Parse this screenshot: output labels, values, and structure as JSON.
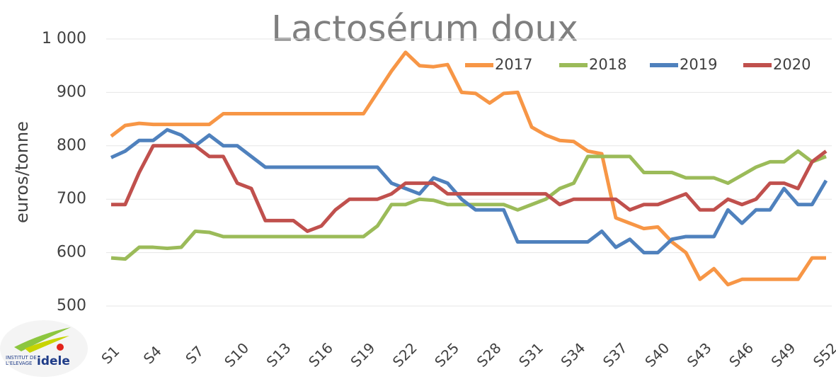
{
  "chart_data": {
    "type": "line",
    "title": "Lactosérum doux",
    "y_label": "euros/tonne",
    "categories": [
      "S1",
      null,
      null,
      "S4",
      null,
      null,
      "S7",
      null,
      null,
      "S10",
      null,
      null,
      "S13",
      null,
      null,
      "S16",
      null,
      null,
      "S19",
      null,
      null,
      "S22",
      null,
      null,
      "S25",
      null,
      null,
      "S28",
      null,
      null,
      "S31",
      null,
      null,
      "S34",
      null,
      null,
      "S37",
      null,
      null,
      "S40",
      null,
      null,
      "S43",
      null,
      null,
      "S46",
      null,
      null,
      "S49",
      null,
      null,
      "S52"
    ],
    "series": [
      {
        "name": "2017",
        "color": "#f79646",
        "values": [
          818,
          838,
          842,
          840,
          840,
          840,
          840,
          840,
          860,
          860,
          860,
          860,
          860,
          860,
          860,
          860,
          860,
          860,
          860,
          900,
          940,
          975,
          950,
          948,
          952,
          900,
          898,
          880,
          898,
          900,
          835,
          820,
          810,
          808,
          790,
          785,
          665,
          655,
          645,
          648,
          620,
          600,
          550,
          570,
          540,
          550,
          550,
          550,
          550,
          550,
          590,
          590
        ]
      },
      {
        "name": "2018",
        "color": "#9bbb59",
        "values": [
          590,
          588,
          610,
          610,
          608,
          610,
          640,
          638,
          630,
          630,
          630,
          630,
          630,
          630,
          630,
          630,
          630,
          630,
          630,
          650,
          690,
          690,
          700,
          698,
          690,
          690,
          690,
          690,
          690,
          680,
          690,
          700,
          720,
          730,
          780,
          780,
          780,
          780,
          750,
          750,
          750,
          740,
          740,
          740,
          730,
          745,
          760,
          770,
          770,
          790,
          770,
          780
        ]
      },
      {
        "name": "2019",
        "color": "#4f81bd",
        "values": [
          778,
          790,
          810,
          810,
          830,
          820,
          800,
          820,
          800,
          800,
          780,
          760,
          760,
          760,
          760,
          760,
          760,
          760,
          760,
          760,
          730,
          720,
          710,
          740,
          730,
          700,
          680,
          680,
          680,
          620,
          620,
          620,
          620,
          620,
          620,
          640,
          610,
          625,
          600,
          600,
          625,
          630,
          630,
          630,
          680,
          655,
          680,
          680,
          720,
          690,
          690,
          735
        ]
      },
      {
        "name": "2020",
        "color": "#c0504d",
        "values": [
          690,
          690,
          750,
          800,
          800,
          800,
          800,
          780,
          780,
          730,
          720,
          660,
          660,
          660,
          640,
          650,
          680,
          700,
          700,
          700,
          710,
          730,
          730,
          730,
          710,
          710,
          710,
          710,
          710,
          710,
          710,
          710,
          690,
          700,
          700,
          700,
          700,
          680,
          690,
          690,
          700,
          710,
          680,
          680,
          700,
          690,
          700,
          730,
          730,
          720,
          770,
          790
        ]
      }
    ],
    "ylim": [
      500,
      1000
    ],
    "yticks": [
      500,
      600,
      700,
      800,
      900,
      {
        "value": 1000,
        "label": "1 000"
      }
    ],
    "grid": true,
    "legend": "top-right"
  },
  "logo": {
    "line1": "INSTITUT DE",
    "line2": "L'ELEVAGE",
    "brand": "idele"
  }
}
